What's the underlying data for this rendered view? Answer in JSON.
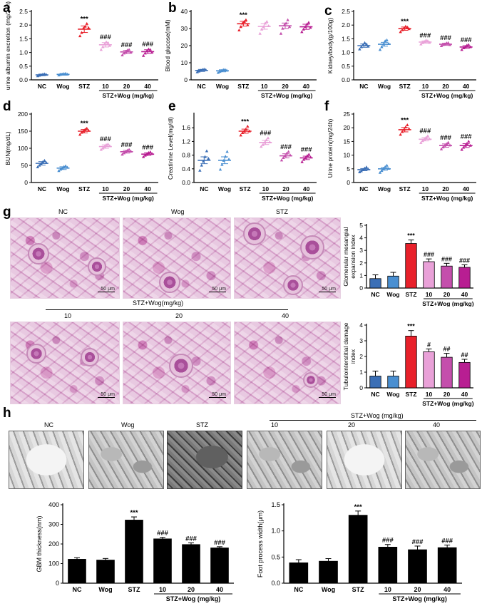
{
  "panels": {
    "a": "a",
    "b": "b",
    "c": "c",
    "d": "d",
    "e": "e",
    "f": "f",
    "g": "g",
    "h": "h"
  },
  "group_labels": {
    "nc": "NC",
    "wog": "Wog",
    "stz": "STZ",
    "stz_wog_mgkg": "STZ+Wog (mg/kg)",
    "stz_wog_mgkg_g": "STZ+Wog(mg/kg)",
    "dose_10": "10",
    "dose_20": "20",
    "dose_40": "40"
  },
  "micrograph_scale": "50 μm",
  "colors": {
    "NC": "#3b6fb6",
    "Wog": "#4a8fd1",
    "STZ": "#e8202a",
    "d10": "#e9a1d8",
    "d20": "#c44fac",
    "d40": "#b81e92",
    "black_bar": "#000000"
  },
  "chart_data": [
    {
      "id": "a",
      "type": "scatter",
      "ylabel": "urine albumin excretion (mg/24h)",
      "ylim": [
        0,
        2.5
      ],
      "yticks": [
        "0.0",
        "0.5",
        "1.0",
        "1.5",
        "2.0",
        "2.5"
      ],
      "categories": [
        "NC",
        "Wog",
        "STZ",
        "10",
        "20",
        "40"
      ],
      "means": [
        0.18,
        0.2,
        1.85,
        1.28,
        1.02,
        1.03
      ],
      "sems": [
        0.03,
        0.03,
        0.12,
        0.08,
        0.06,
        0.07
      ],
      "points": [
        [
          0.14,
          0.16,
          0.18,
          0.2,
          0.21,
          0.19
        ],
        [
          0.17,
          0.19,
          0.2,
          0.22,
          0.23,
          0.2
        ],
        [
          1.6,
          1.72,
          1.88,
          1.95,
          2.05,
          1.9
        ],
        [
          1.1,
          1.2,
          1.3,
          1.38,
          1.35,
          1.25
        ],
        [
          0.9,
          0.97,
          1.02,
          1.08,
          1.1,
          1.0
        ],
        [
          0.88,
          0.97,
          1.05,
          1.12,
          1.1,
          1.0
        ]
      ],
      "annotations": [
        "",
        "",
        "***",
        "###",
        "###",
        "###"
      ]
    },
    {
      "id": "b",
      "type": "scatter",
      "ylabel": "Blood glucose(mM)",
      "ylim": [
        0,
        40
      ],
      "yticks": [
        "0",
        "10",
        "20",
        "30",
        "40"
      ],
      "categories": [
        "NC",
        "Wog",
        "STZ",
        "10",
        "20",
        "40"
      ],
      "means": [
        5.5,
        5.3,
        32.8,
        31.2,
        31.6,
        31.0
      ],
      "sems": [
        0.6,
        0.6,
        1.4,
        1.6,
        1.6,
        1.5
      ],
      "points": [
        [
          4.5,
          5.0,
          5.5,
          6.0,
          6.2,
          5.8
        ],
        [
          4.2,
          4.8,
          5.3,
          5.9,
          6.0,
          5.5
        ],
        [
          29,
          31,
          33,
          34,
          35,
          32
        ],
        [
          27,
          29.5,
          31,
          33,
          34,
          31.5
        ],
        [
          27,
          30,
          32,
          33,
          35,
          31
        ],
        [
          28,
          29.5,
          31,
          32.5,
          33.5,
          30.5
        ]
      ],
      "annotations": [
        "",
        "",
        "***",
        "",
        "",
        ""
      ]
    },
    {
      "id": "c",
      "type": "scatter",
      "ylabel": "Kidney/body(g/100g)",
      "ylim": [
        0,
        2.5
      ],
      "yticks": [
        "0.0",
        "0.5",
        "1.0",
        "1.5",
        "2.0",
        "2.5"
      ],
      "categories": [
        "NC",
        "Wog",
        "STZ",
        "10",
        "20",
        "40"
      ],
      "means": [
        1.25,
        1.3,
        1.87,
        1.38,
        1.3,
        1.2
      ],
      "sems": [
        0.06,
        0.07,
        0.06,
        0.04,
        0.04,
        0.05
      ],
      "points": [
        [
          1.12,
          1.2,
          1.28,
          1.35,
          1.3,
          1.22
        ],
        [
          1.1,
          1.2,
          1.3,
          1.42,
          1.45,
          1.32
        ],
        [
          1.75,
          1.82,
          1.88,
          1.95,
          1.92,
          1.86
        ],
        [
          1.3,
          1.35,
          1.4,
          1.44,
          1.42,
          1.36
        ],
        [
          1.24,
          1.28,
          1.3,
          1.34,
          1.35,
          1.28
        ],
        [
          1.1,
          1.16,
          1.2,
          1.26,
          1.28,
          1.2
        ]
      ],
      "annotations": [
        "",
        "",
        "***",
        "###",
        "###",
        "###"
      ]
    },
    {
      "id": "d",
      "type": "scatter",
      "ylabel": "BUN(mg/dL)",
      "ylim": [
        0,
        200
      ],
      "yticks": [
        "0",
        "50",
        "100",
        "150",
        "200"
      ],
      "categories": [
        "NC",
        "Wog",
        "STZ",
        "10",
        "20",
        "40"
      ],
      "means": [
        56,
        42,
        150,
        105,
        90,
        83
      ],
      "sems": [
        5,
        4,
        5,
        5,
        4,
        4
      ],
      "points": [
        [
          45,
          50,
          55,
          60,
          64,
          58
        ],
        [
          34,
          38,
          42,
          46,
          48,
          44
        ],
        [
          140,
          146,
          150,
          155,
          158,
          152
        ],
        [
          96,
          100,
          105,
          110,
          112,
          107
        ],
        [
          82,
          86,
          90,
          94,
          96,
          91
        ],
        [
          75,
          79,
          83,
          87,
          89,
          84
        ]
      ],
      "annotations": [
        "",
        "",
        "***",
        "###",
        "###",
        "###"
      ]
    },
    {
      "id": "e",
      "type": "scatter",
      "ylabel": "Creatinine Level(mg/dl)",
      "ylim": [
        0,
        2.0
      ],
      "yticks": [
        "0.0",
        "0.4",
        "0.8",
        "1.2",
        "1.6"
      ],
      "categories": [
        "NC",
        "Wog",
        "STZ",
        "10",
        "20",
        "40"
      ],
      "means": [
        0.65,
        0.65,
        1.5,
        1.17,
        0.78,
        0.72
      ],
      "sems": [
        0.1,
        0.1,
        0.06,
        0.06,
        0.06,
        0.05
      ],
      "points": [
        [
          0.35,
          0.5,
          0.62,
          0.75,
          0.92,
          0.7
        ],
        [
          0.38,
          0.52,
          0.64,
          0.76,
          0.9,
          0.68
        ],
        [
          1.38,
          1.45,
          1.5,
          1.56,
          1.64,
          1.5
        ],
        [
          1.05,
          1.1,
          1.17,
          1.24,
          1.3,
          1.18
        ],
        [
          0.65,
          0.72,
          0.78,
          0.85,
          0.9,
          0.8
        ],
        [
          0.6,
          0.67,
          0.72,
          0.78,
          0.82,
          0.74
        ]
      ],
      "annotations": [
        "",
        "",
        "***",
        "###",
        "###",
        "###"
      ]
    },
    {
      "id": "f",
      "type": "scatter",
      "ylabel": "Urine protein(mg/24h)",
      "ylim": [
        0,
        25
      ],
      "yticks": [
        "0",
        "5",
        "10",
        "15",
        "20",
        "25"
      ],
      "categories": [
        "NC",
        "Wog",
        "STZ",
        "10",
        "20",
        "40"
      ],
      "means": [
        4.7,
        5.0,
        19.3,
        15.8,
        13.5,
        13.5
      ],
      "sems": [
        0.4,
        0.5,
        0.8,
        0.6,
        0.6,
        0.7
      ],
      "points": [
        [
          3.8,
          4.2,
          4.7,
          5.2,
          5.6,
          4.9
        ],
        [
          3.6,
          4.3,
          5.0,
          5.7,
          6.2,
          5.1
        ],
        [
          17.5,
          18.5,
          19.3,
          20.2,
          21.0,
          19.6
        ],
        [
          14.5,
          15.2,
          15.8,
          16.4,
          17.0,
          15.9
        ],
        [
          12.2,
          12.9,
          13.5,
          14.1,
          14.6,
          13.6
        ],
        [
          12.0,
          12.8,
          13.5,
          14.2,
          15.0,
          13.5
        ]
      ],
      "annotations": [
        "",
        "",
        "***",
        "###",
        "###",
        "###"
      ]
    },
    {
      "id": "g_top",
      "type": "bar",
      "ylabel": "Glomerular mesangial expansion index",
      "ylim": [
        0,
        5
      ],
      "yticks": [
        "0",
        "1",
        "2",
        "3",
        "4",
        "5"
      ],
      "categories": [
        "NC",
        "Wog",
        "STZ",
        "10",
        "20",
        "40"
      ],
      "values": [
        0.75,
        0.95,
        3.55,
        2.1,
        1.75,
        1.65
      ],
      "errors": [
        0.3,
        0.3,
        0.28,
        0.22,
        0.22,
        0.2
      ],
      "annotations": [
        "",
        "",
        "***",
        "###",
        "###",
        "###"
      ]
    },
    {
      "id": "g_bottom",
      "type": "bar",
      "ylabel": "Tubulointerstitial damage index",
      "ylim": [
        0,
        4
      ],
      "yticks": [
        "0",
        "1",
        "2",
        "3",
        "4"
      ],
      "categories": [
        "NC",
        "Wog",
        "STZ",
        "10",
        "20",
        "40"
      ],
      "values": [
        0.75,
        0.75,
        3.3,
        2.3,
        1.95,
        1.62
      ],
      "errors": [
        0.32,
        0.32,
        0.35,
        0.18,
        0.25,
        0.2
      ],
      "annotations": [
        "",
        "",
        "***",
        "#",
        "##",
        "##"
      ]
    },
    {
      "id": "h_left",
      "type": "bar",
      "ylabel": "GBM thickness(nm)",
      "ylim": [
        0,
        400
      ],
      "yticks": [
        "0",
        "100",
        "200",
        "300",
        "400"
      ],
      "categories": [
        "NC",
        "Wog",
        "STZ",
        "10",
        "20",
        "40"
      ],
      "values": [
        122,
        118,
        322,
        226,
        197,
        180
      ],
      "errors": [
        8,
        8,
        16,
        8,
        9,
        6
      ],
      "annotations": [
        "",
        "",
        "***",
        "###",
        "###",
        "###"
      ]
    },
    {
      "id": "h_right",
      "type": "bar",
      "ylabel": "Foot process width(μm)",
      "ylim": [
        0,
        1.5
      ],
      "yticks": [
        "0.0",
        "0.5",
        "1.0",
        "1.5"
      ],
      "categories": [
        "NC",
        "Wog",
        "STZ",
        "10",
        "20",
        "40"
      ],
      "values": [
        0.39,
        0.42,
        1.3,
        0.69,
        0.64,
        0.68
      ],
      "errors": [
        0.06,
        0.05,
        0.08,
        0.05,
        0.07,
        0.05
      ],
      "annotations": [
        "",
        "",
        "***",
        "###",
        "###",
        "###"
      ]
    }
  ]
}
